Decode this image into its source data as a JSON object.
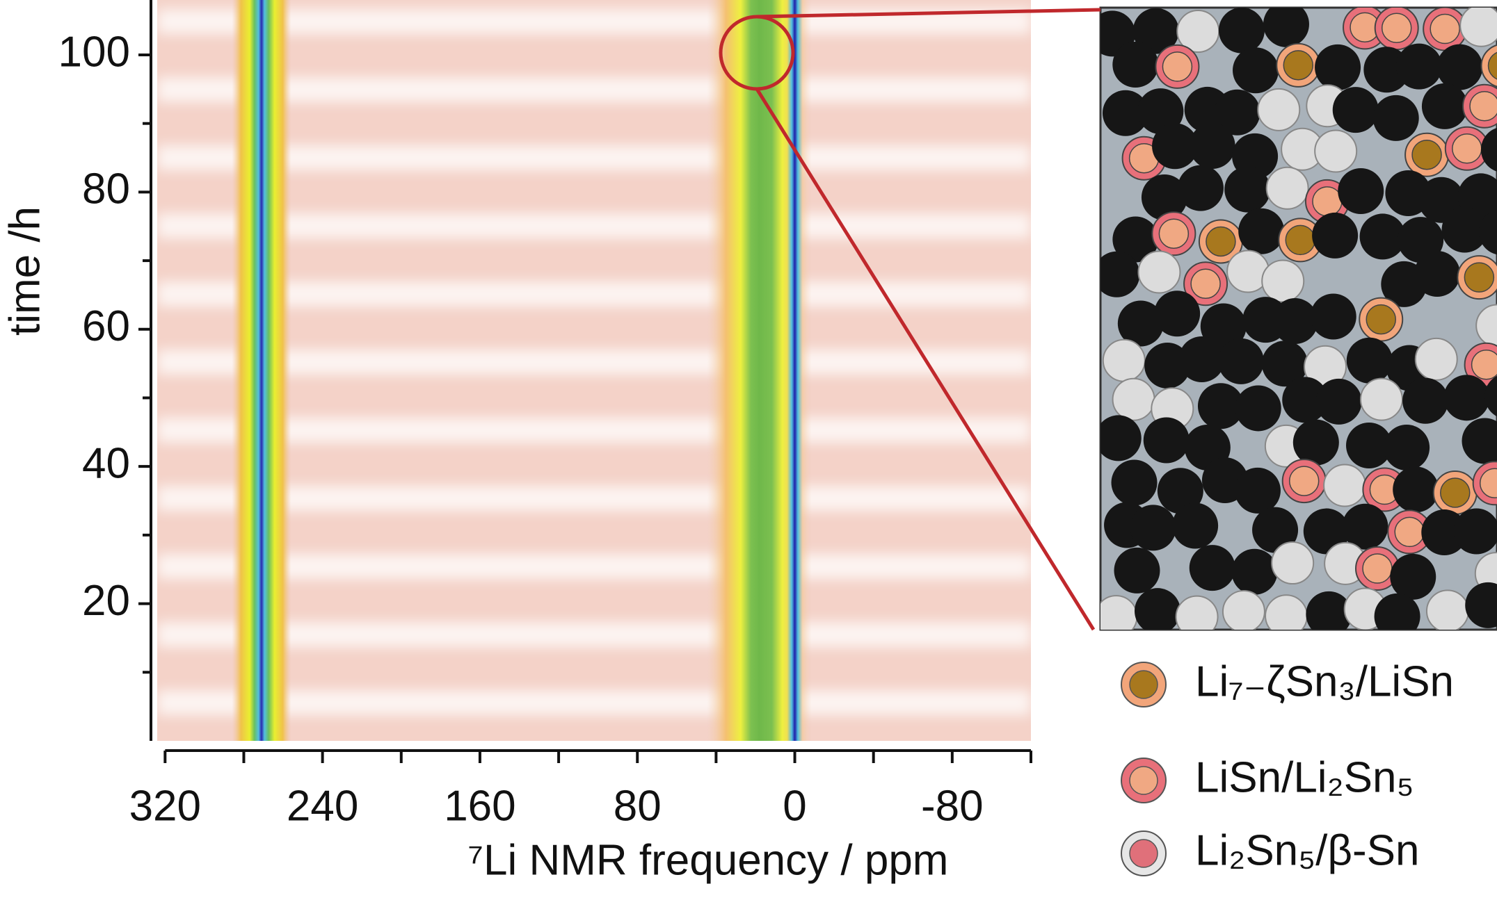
{
  "chart_data": {
    "type": "heatmap",
    "xlabel": "⁷Li NMR frequency / ppm",
    "ylabel": "time /h",
    "xlim": [
      324,
      -120
    ],
    "ylim": [
      0,
      108
    ],
    "xticks": [
      320,
      240,
      160,
      80,
      0,
      -80
    ],
    "xminorticks": [
      280,
      200,
      120,
      40,
      -40,
      -120
    ],
    "yticks": [
      20,
      40,
      60,
      80,
      100
    ],
    "yminorticks": [
      10,
      30,
      50,
      70,
      90
    ],
    "x": [
      271,
      18,
      0
    ],
    "legend": [
      {
        "label": "Li₇₋ζSn₃/LiSn",
        "outer": "#f2a57a",
        "inner": "#a8781e"
      },
      {
        "label": "LiSn/Li₂Sn₅",
        "outer": "#e8707a",
        "inner": "#f0a883"
      },
      {
        "label": "Li₂Sn₅/β-Sn",
        "outer": "#e6e6e6",
        "inner": "#e0707a"
      }
    ]
  }
}
